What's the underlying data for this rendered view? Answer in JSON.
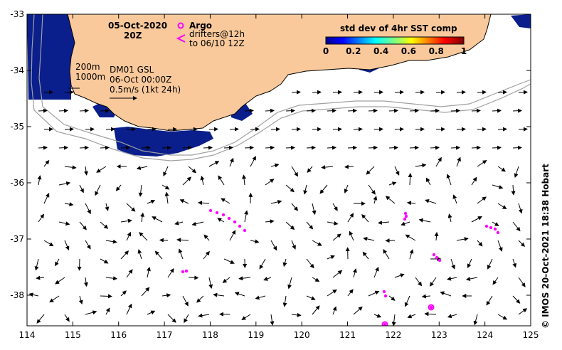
{
  "map": {
    "date": "05-Oct-2020",
    "hour": "20Z",
    "argo_label": "Argo",
    "drifters_label": "drifters@12h",
    "drifters_to": "to 06/10 12Z",
    "depth_200": "200m",
    "depth_1000": "1000m",
    "model_label": "DM01 GSL",
    "model_time": "06-Oct 00:00Z",
    "scale_label": "0.5m/s (1kt 24h)",
    "colorbar": {
      "title": "std dev of 4hr SST comp",
      "ticks": [
        "0",
        "0.2",
        "0.4",
        "0.6",
        "0.8",
        "1"
      ]
    },
    "credit": "© IMOS 20-Oct-2021 18:38 Hobart",
    "lon_ticks": [
      "114",
      "115",
      "116",
      "117",
      "118",
      "119",
      "120",
      "121",
      "122",
      "123",
      "124",
      "125"
    ],
    "lat_ticks": [
      "-33",
      "-34",
      "-35",
      "-36",
      "-37",
      "-38"
    ],
    "colors": {
      "land": "#f9c99b",
      "ocean": "#ffffff",
      "low_variance": "#0a1e8c",
      "markers": "#ff00ff",
      "isobath": "#a0a0a0"
    }
  }
}
